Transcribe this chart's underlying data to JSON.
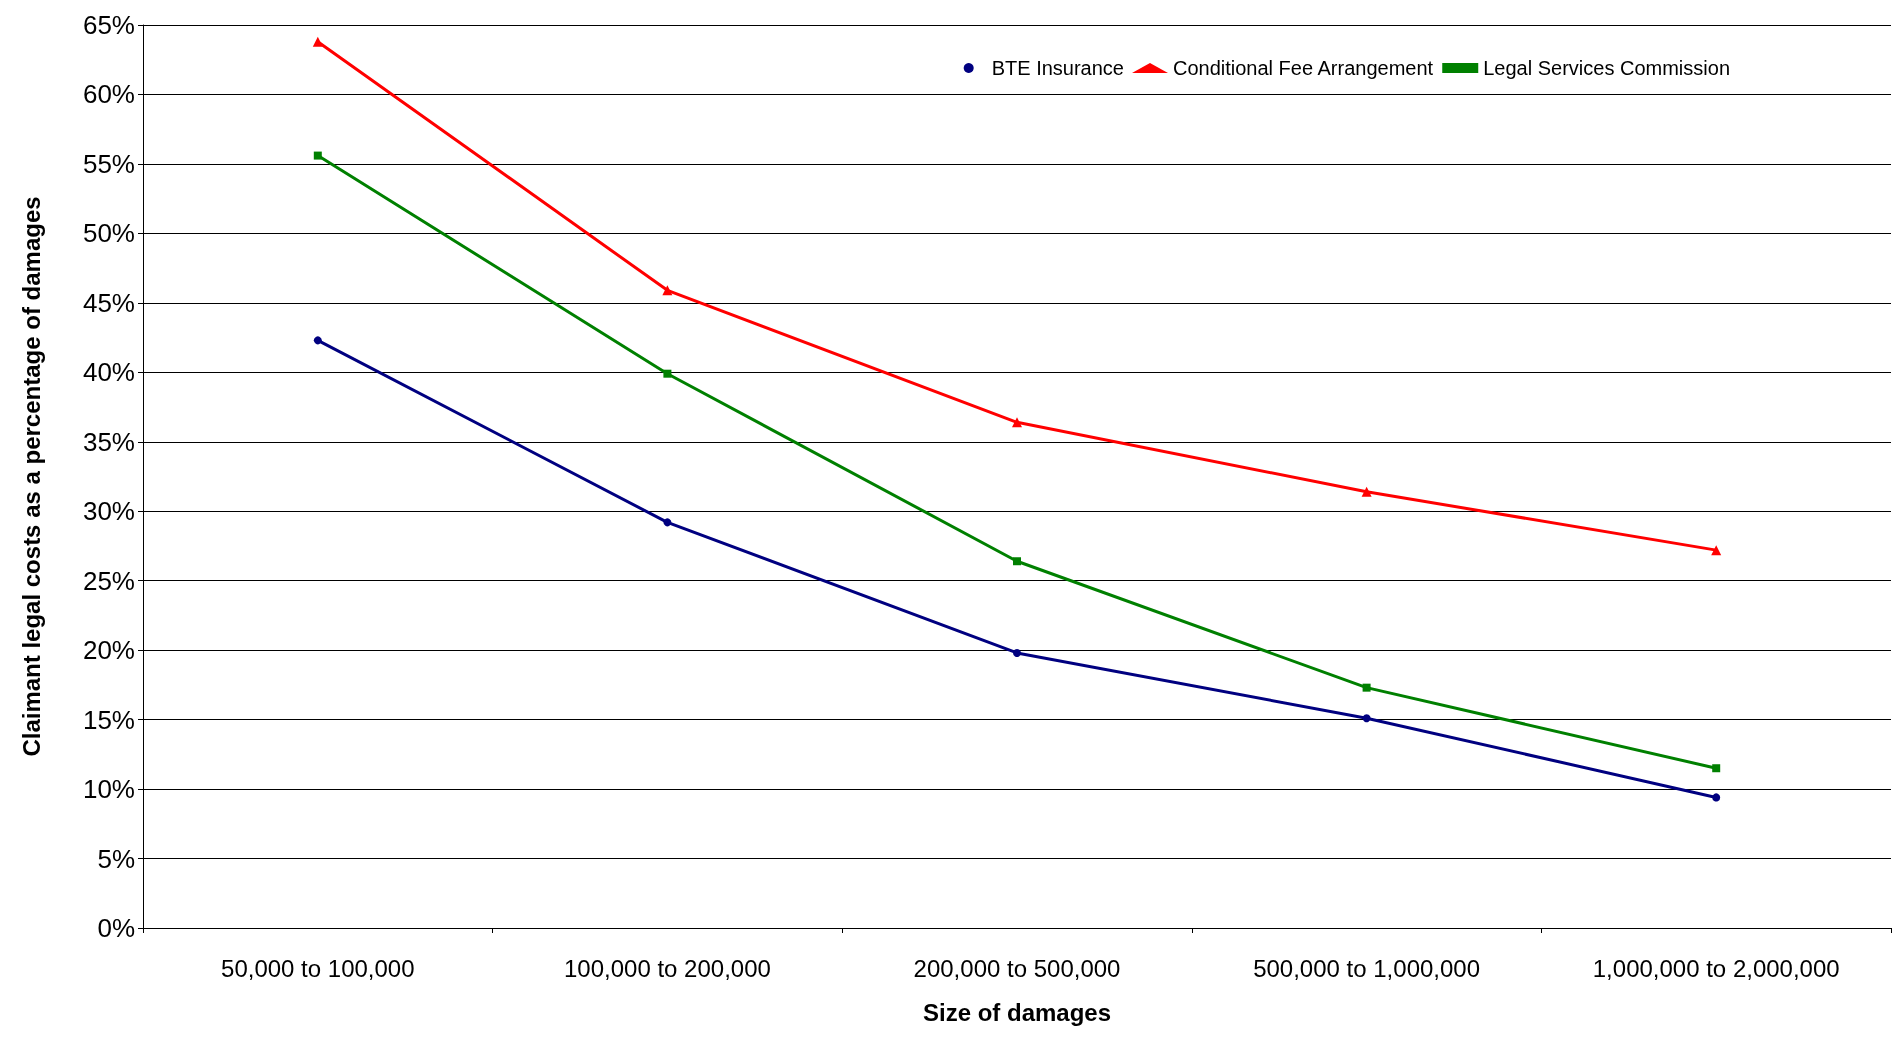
{
  "chart_data": {
    "type": "line",
    "xlabel": "Size of damages",
    "ylabel": "Claimant legal costs as a percentage of damages",
    "categories": [
      "50,000 to 100,000",
      "100,000 to 200,000",
      "200,000 to 500,000",
      "500,000 to 1,000,000",
      "1,000,000 to 2,000,000"
    ],
    "series": [
      {
        "name": "BTE Insurance",
        "color": "#000080",
        "marker": "circle",
        "values": [
          42.3,
          29.2,
          19.8,
          15.1,
          9.4
        ]
      },
      {
        "name": "Conditional Fee Arrangement",
        "color": "#ff0000",
        "marker": "triangle",
        "values": [
          63.8,
          45.9,
          36.4,
          31.4,
          27.2
        ]
      },
      {
        "name": "Legal Services Commission",
        "color": "#008000",
        "marker": "square",
        "values": [
          55.6,
          39.9,
          26.4,
          17.3,
          11.5
        ]
      }
    ],
    "ylim": [
      0,
      65
    ],
    "yticks": [
      {
        "value": 0,
        "label": "0%"
      },
      {
        "value": 5,
        "label": "5%"
      },
      {
        "value": 10,
        "label": "10%"
      },
      {
        "value": 15,
        "label": "15%"
      },
      {
        "value": 20,
        "label": "20%"
      },
      {
        "value": 25,
        "label": "25%"
      },
      {
        "value": 30,
        "label": "30%"
      },
      {
        "value": 35,
        "label": "35%"
      },
      {
        "value": 40,
        "label": "40%"
      },
      {
        "value": 45,
        "label": "45%"
      },
      {
        "value": 50,
        "label": "50%"
      },
      {
        "value": 55,
        "label": "55%"
      },
      {
        "value": 60,
        "label": "60%"
      },
      {
        "value": 65,
        "label": "65%"
      }
    ],
    "grid": "y",
    "legend": "top right",
    "line_style": "solid"
  }
}
